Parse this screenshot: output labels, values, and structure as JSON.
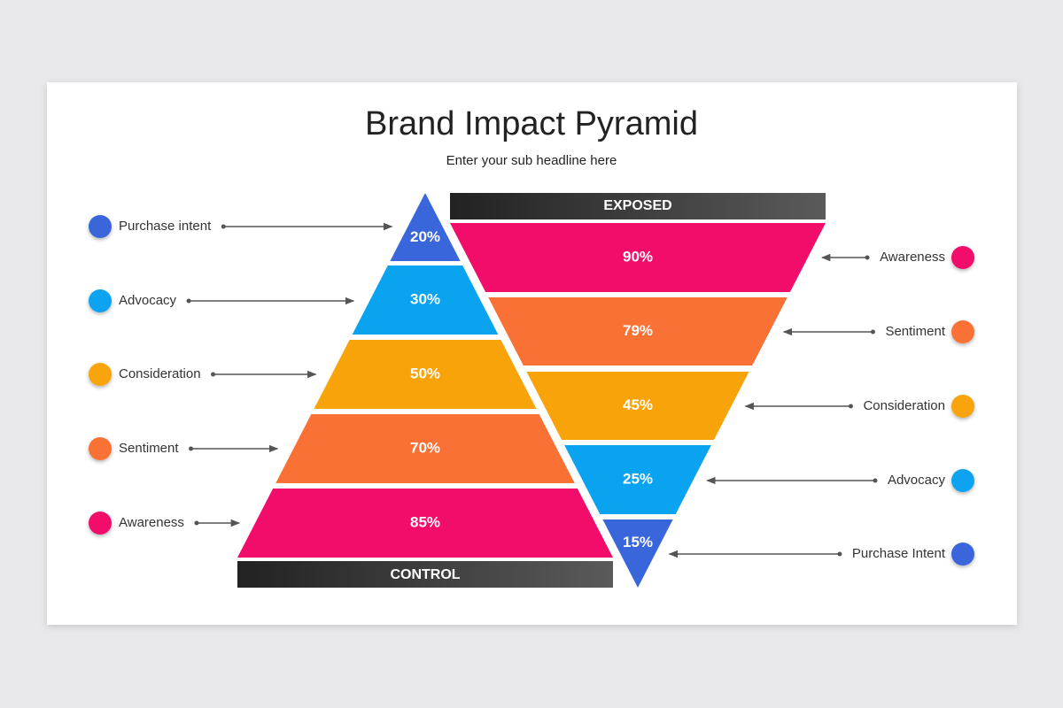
{
  "title": "Brand Impact Pyramid",
  "subtitle": "Enter your sub headline here",
  "control": {
    "label": "CONTROL",
    "levels": [
      {
        "name": "Purchase intent",
        "value": "20%",
        "color": "#3a66db"
      },
      {
        "name": "Advocacy",
        "value": "30%",
        "color": "#0aa3f0"
      },
      {
        "name": "Consideration",
        "value": "50%",
        "color": "#f9a30a"
      },
      {
        "name": "Sentiment",
        "value": "70%",
        "color": "#f97135"
      },
      {
        "name": "Awareness",
        "value": "85%",
        "color": "#f20d6b"
      }
    ]
  },
  "exposed": {
    "label": "EXPOSED",
    "levels": [
      {
        "name": "Awareness",
        "value": "90%",
        "color": "#f20d6b"
      },
      {
        "name": "Sentiment",
        "value": "79%",
        "color": "#f97135"
      },
      {
        "name": "Consideration",
        "value": "45%",
        "color": "#f9a30a"
      },
      {
        "name": "Advocacy",
        "value": "25%",
        "color": "#0aa3f0"
      },
      {
        "name": "Purchase Intent",
        "value": "15%",
        "color": "#3a66db"
      }
    ]
  }
}
